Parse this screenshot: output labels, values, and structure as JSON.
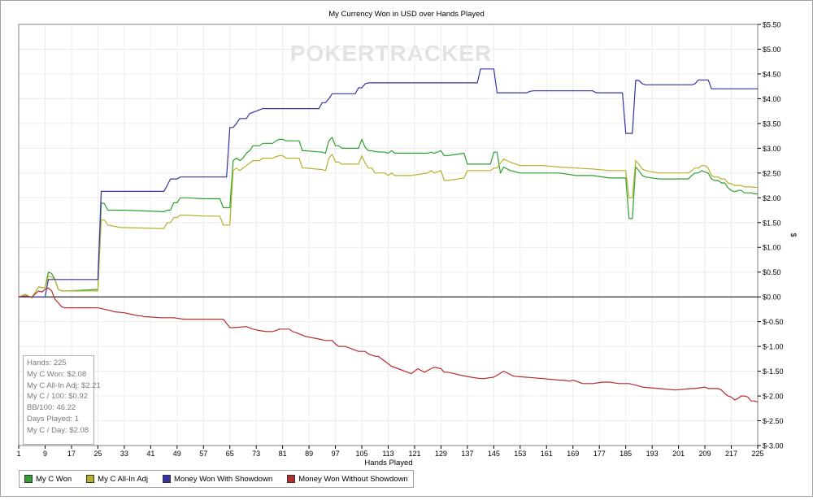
{
  "chart_data": {
    "type": "line",
    "title": "My Currency Won in USD over Hands Played",
    "watermark": "POKERTRACKER",
    "xlabel": "Hands Played",
    "ylabel": "$",
    "xlim": [
      1,
      225
    ],
    "ylim": [
      -3.0,
      5.5
    ],
    "x_ticks": [
      1,
      9,
      17,
      25,
      33,
      41,
      49,
      57,
      65,
      73,
      81,
      89,
      97,
      105,
      113,
      121,
      129,
      137,
      145,
      153,
      161,
      169,
      177,
      185,
      193,
      201,
      209,
      217,
      225
    ],
    "y_ticks": [
      {
        "value": 5.5,
        "label": "$5.50"
      },
      {
        "value": 5.0,
        "label": "$5.00"
      },
      {
        "value": 4.5,
        "label": "$4.50"
      },
      {
        "value": 4.0,
        "label": "$4.00"
      },
      {
        "value": 3.5,
        "label": "$3.50"
      },
      {
        "value": 3.0,
        "label": "$3.00"
      },
      {
        "value": 2.5,
        "label": "$2.50"
      },
      {
        "value": 2.0,
        "label": "$2.00"
      },
      {
        "value": 1.5,
        "label": "$1.50"
      },
      {
        "value": 1.0,
        "label": "$1.00"
      },
      {
        "value": 0.5,
        "label": "$0.50"
      },
      {
        "value": 0.0,
        "label": "$0.00"
      },
      {
        "value": -0.5,
        "label": "$-0.50"
      },
      {
        "value": -1.0,
        "label": "$-1.00"
      },
      {
        "value": -1.5,
        "label": "$-1.50"
      },
      {
        "value": -2.0,
        "label": "$-2.00"
      },
      {
        "value": -2.5,
        "label": "$-2.50"
      },
      {
        "value": -3.0,
        "label": "$-3.00"
      }
    ],
    "grid": true,
    "legend_position": "bottom-left",
    "series": [
      {
        "name": "My C Won",
        "color": "#2fa12f",
        "x": [
          1,
          3,
          5,
          7,
          9,
          10,
          11,
          12,
          13,
          14,
          15,
          16,
          25,
          26,
          27,
          28,
          32,
          33,
          45,
          46,
          47,
          48,
          49,
          50,
          51,
          52,
          57,
          58,
          62,
          63,
          64,
          65,
          66,
          67,
          68,
          69,
          70,
          71,
          72,
          73,
          74,
          75,
          78,
          79,
          80,
          81,
          82,
          85,
          86,
          87,
          88,
          93,
          94,
          95,
          96,
          97,
          98,
          99,
          104,
          105,
          106,
          107,
          108,
          109,
          112,
          113,
          114,
          115,
          120,
          125,
          126,
          127,
          129,
          130,
          131,
          136,
          137,
          144,
          145,
          146,
          147,
          148,
          150,
          153,
          155,
          160,
          165,
          170,
          175,
          180,
          185,
          186,
          187,
          188,
          189,
          190,
          191,
          195,
          200,
          204,
          205,
          206,
          207,
          208,
          209,
          210,
          211,
          212,
          213,
          214,
          215,
          216,
          217,
          218,
          219,
          220,
          221,
          222,
          223,
          224,
          225
        ],
        "values": [
          0.0,
          0.05,
          -0.02,
          0.2,
          0.18,
          0.5,
          0.47,
          0.35,
          0.15,
          0.12,
          0.12,
          0.12,
          0.15,
          1.9,
          1.88,
          1.75,
          1.75,
          1.75,
          1.72,
          1.75,
          1.75,
          1.9,
          1.9,
          2.0,
          2.0,
          2.0,
          1.98,
          1.98,
          1.98,
          1.8,
          1.8,
          1.8,
          2.75,
          2.8,
          2.75,
          2.8,
          2.9,
          2.95,
          3.05,
          3.05,
          3.05,
          3.1,
          3.1,
          3.15,
          3.18,
          3.18,
          3.15,
          3.15,
          3.15,
          2.95,
          2.95,
          2.92,
          2.9,
          3.15,
          3.22,
          3.05,
          3.05,
          3.0,
          3.0,
          3.18,
          3.02,
          2.95,
          2.95,
          2.93,
          2.92,
          2.9,
          2.95,
          2.9,
          2.9,
          2.9,
          2.92,
          2.9,
          2.95,
          2.85,
          2.85,
          2.9,
          2.68,
          2.68,
          2.92,
          2.92,
          2.5,
          2.62,
          2.55,
          2.5,
          2.5,
          2.5,
          2.5,
          2.45,
          2.45,
          2.4,
          2.4,
          1.58,
          1.58,
          2.62,
          2.55,
          2.45,
          2.42,
          2.38,
          2.38,
          2.38,
          2.45,
          2.5,
          2.5,
          2.55,
          2.52,
          2.5,
          2.38,
          2.35,
          2.35,
          2.3,
          2.3,
          2.2,
          2.15,
          2.12,
          2.15,
          2.15,
          2.1,
          2.1,
          2.1,
          2.08,
          2.08
        ]
      },
      {
        "name": "My C All-In Adj",
        "color": "#b5b22a",
        "x": [
          1,
          3,
          5,
          7,
          9,
          10,
          11,
          12,
          13,
          14,
          15,
          16,
          25,
          26,
          27,
          28,
          32,
          33,
          45,
          46,
          47,
          48,
          49,
          50,
          51,
          52,
          57,
          58,
          62,
          63,
          64,
          65,
          66,
          67,
          68,
          69,
          70,
          71,
          72,
          73,
          74,
          75,
          78,
          79,
          80,
          81,
          82,
          85,
          86,
          87,
          88,
          93,
          94,
          95,
          96,
          97,
          98,
          99,
          104,
          105,
          106,
          107,
          108,
          109,
          112,
          113,
          114,
          115,
          120,
          125,
          126,
          127,
          129,
          130,
          131,
          136,
          137,
          144,
          145,
          146,
          147,
          148,
          150,
          153,
          155,
          160,
          165,
          170,
          175,
          180,
          185,
          186,
          187,
          188,
          189,
          190,
          191,
          195,
          200,
          204,
          205,
          206,
          207,
          208,
          209,
          210,
          211,
          212,
          213,
          214,
          215,
          216,
          217,
          218,
          219,
          220,
          221,
          222,
          223,
          224,
          225
        ],
        "values": [
          0.0,
          0.05,
          -0.02,
          0.2,
          0.18,
          0.42,
          0.4,
          0.35,
          0.15,
          0.12,
          0.12,
          0.12,
          0.12,
          1.55,
          1.55,
          1.45,
          1.4,
          1.4,
          1.38,
          1.5,
          1.5,
          1.6,
          1.6,
          1.65,
          1.65,
          1.65,
          1.63,
          1.63,
          1.63,
          1.45,
          1.45,
          1.45,
          2.55,
          2.6,
          2.55,
          2.6,
          2.65,
          2.7,
          2.75,
          2.75,
          2.75,
          2.8,
          2.8,
          2.83,
          2.85,
          2.85,
          2.8,
          2.8,
          2.8,
          2.6,
          2.6,
          2.57,
          2.55,
          2.8,
          2.88,
          2.72,
          2.72,
          2.68,
          2.68,
          2.85,
          2.7,
          2.6,
          2.6,
          2.5,
          2.5,
          2.45,
          2.5,
          2.45,
          2.45,
          2.5,
          2.55,
          2.5,
          2.55,
          2.35,
          2.35,
          2.4,
          2.55,
          2.55,
          2.6,
          2.6,
          2.7,
          2.78,
          2.72,
          2.65,
          2.65,
          2.65,
          2.62,
          2.6,
          2.58,
          2.55,
          2.55,
          2.0,
          2.0,
          2.75,
          2.68,
          2.58,
          2.55,
          2.5,
          2.5,
          2.5,
          2.55,
          2.6,
          2.6,
          2.65,
          2.65,
          2.6,
          2.45,
          2.42,
          2.42,
          2.38,
          2.38,
          2.3,
          2.28,
          2.25,
          2.25,
          2.25,
          2.22,
          2.22,
          2.22,
          2.21,
          2.21
        ]
      },
      {
        "name": "Money Won With Showdown",
        "color": "#3333a6",
        "x": [
          1,
          9,
          10,
          25,
          26,
          45,
          46,
          47,
          48,
          49,
          50,
          51,
          64,
          65,
          66,
          67,
          68,
          69,
          70,
          71,
          75,
          76,
          77,
          92,
          93,
          94,
          95,
          96,
          97,
          103,
          104,
          105,
          106,
          107,
          108,
          109,
          139,
          140,
          141,
          142,
          143,
          144,
          145,
          146,
          147,
          148,
          155,
          156,
          157,
          175,
          176,
          177,
          178,
          184,
          185,
          186,
          187,
          188,
          189,
          190,
          191,
          192,
          205,
          206,
          207,
          208,
          209,
          210,
          211,
          212,
          225
        ],
        "values": [
          0.0,
          0.0,
          0.35,
          0.35,
          2.13,
          2.13,
          2.25,
          2.38,
          2.38,
          2.38,
          2.42,
          2.42,
          2.42,
          3.42,
          3.42,
          3.5,
          3.6,
          3.6,
          3.6,
          3.7,
          3.8,
          3.8,
          3.8,
          3.8,
          3.92,
          3.92,
          4.0,
          4.1,
          4.1,
          4.1,
          4.22,
          4.22,
          4.3,
          4.32,
          4.32,
          4.32,
          4.32,
          4.32,
          4.6,
          4.6,
          4.6,
          4.6,
          4.6,
          4.12,
          4.12,
          4.12,
          4.12,
          4.15,
          4.16,
          4.16,
          4.12,
          4.12,
          4.12,
          4.12,
          3.3,
          3.3,
          3.3,
          4.37,
          4.37,
          4.3,
          4.28,
          4.28,
          4.28,
          4.3,
          4.38,
          4.38,
          4.38,
          4.38,
          4.2,
          4.2,
          4.2
        ]
      },
      {
        "name": "Money Won Without Showdown",
        "color": "#b52c2c",
        "x": [
          1,
          3,
          5,
          7,
          8,
          9,
          10,
          11,
          12,
          13,
          14,
          15,
          20,
          25,
          27,
          29,
          30,
          33,
          35,
          37,
          38,
          39,
          40,
          44,
          46,
          48,
          51,
          57,
          61,
          63,
          65,
          66,
          70,
          72,
          74,
          76,
          78,
          79,
          80,
          83,
          84,
          85,
          88,
          92,
          94,
          96,
          97,
          98,
          100,
          102,
          104,
          106,
          107,
          109,
          110,
          111,
          112,
          114,
          116,
          118,
          120,
          122,
          124,
          126,
          127,
          129,
          130,
          131,
          133,
          135,
          138,
          141,
          142,
          145,
          148,
          151,
          160,
          165,
          166,
          168,
          169,
          172,
          175,
          178,
          180,
          183,
          186,
          188,
          190,
          195,
          200,
          205,
          206,
          209,
          210,
          212,
          213,
          214,
          215,
          216,
          217,
          218,
          219,
          220,
          221,
          222,
          223,
          224,
          225
        ],
        "values": [
          0.0,
          0.02,
          0.0,
          0.12,
          0.1,
          0.15,
          0.18,
          0.12,
          -0.05,
          -0.12,
          -0.2,
          -0.22,
          -0.22,
          -0.22,
          -0.25,
          -0.28,
          -0.3,
          -0.32,
          -0.35,
          -0.38,
          -0.38,
          -0.4,
          -0.4,
          -0.42,
          -0.42,
          -0.42,
          -0.45,
          -0.45,
          -0.45,
          -0.45,
          -0.62,
          -0.62,
          -0.6,
          -0.65,
          -0.68,
          -0.7,
          -0.7,
          -0.68,
          -0.65,
          -0.65,
          -0.7,
          -0.72,
          -0.8,
          -0.85,
          -0.88,
          -0.88,
          -0.95,
          -1.0,
          -1.0,
          -1.05,
          -1.1,
          -1.1,
          -1.15,
          -1.2,
          -1.2,
          -1.25,
          -1.3,
          -1.4,
          -1.45,
          -1.5,
          -1.55,
          -1.45,
          -1.52,
          -1.45,
          -1.42,
          -1.45,
          -1.52,
          -1.52,
          -1.55,
          -1.58,
          -1.62,
          -1.65,
          -1.65,
          -1.62,
          -1.5,
          -1.6,
          -1.65,
          -1.68,
          -1.68,
          -1.7,
          -1.68,
          -1.75,
          -1.75,
          -1.72,
          -1.72,
          -1.75,
          -1.75,
          -1.78,
          -1.82,
          -1.85,
          -1.88,
          -1.85,
          -1.85,
          -1.82,
          -1.85,
          -1.85,
          -1.85,
          -1.88,
          -1.95,
          -2.0,
          -2.02,
          -2.08,
          -2.05,
          -2.0,
          -2.0,
          -2.02,
          -2.1,
          -2.1,
          -2.12
        ]
      }
    ]
  },
  "stats": [
    "Hands: 225",
    "My C Won: $2.08",
    "My C All-In Adj: $2.21",
    "My C / 100: $0.92",
    "BB/100: 46.22",
    "Days Played: 1",
    "My C / Day: $2.08"
  ]
}
